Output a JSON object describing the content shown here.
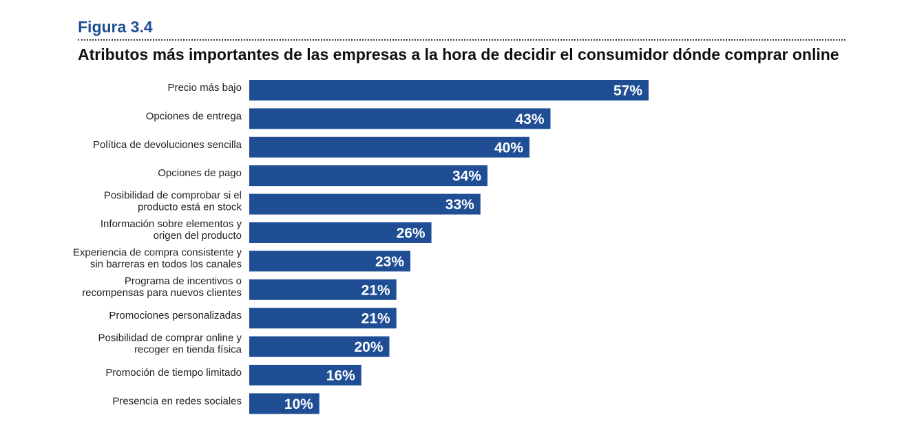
{
  "figure": {
    "label": "Figura 3.4",
    "title": "Atributos más importantes de las empresas a la hora de decidir el consumidor dónde comprar online"
  },
  "colors": {
    "bar": "#1f4e95",
    "figure_label": "#1f4e95",
    "text": "#222222",
    "value_text": "#ffffff"
  },
  "chart_data": {
    "type": "bar",
    "orientation": "horizontal",
    "title": "Atributos más importantes de las empresas a la hora de decidir el consumidor dónde comprar online",
    "xlabel": "",
    "ylabel": "",
    "grid": false,
    "unit": "%",
    "categories": [
      [
        "Precio más bajo"
      ],
      [
        "Opciones de entrega"
      ],
      [
        "Política de devoluciones sencilla"
      ],
      [
        "Opciones de pago"
      ],
      [
        "Posibilidad de comprobar si el",
        "producto está en stock"
      ],
      [
        "Información sobre elementos y",
        "origen del producto"
      ],
      [
        "Experiencia de compra consistente y",
        "sin barreras en todos los canales"
      ],
      [
        "Programa de incentivos o",
        "recompensas para nuevos clientes"
      ],
      [
        "Promociones personalizadas"
      ],
      [
        "Posibilidad de comprar online y",
        "recoger en tienda física"
      ],
      [
        "Promoción de tiempo limitado"
      ],
      [
        "Presencia en redes sociales"
      ]
    ],
    "values": [
      57,
      43,
      40,
      34,
      33,
      26,
      23,
      21,
      21,
      20,
      16,
      10
    ],
    "value_labels": [
      "57%",
      "43%",
      "40%",
      "34%",
      "33%",
      "26%",
      "23%",
      "21%",
      "21%",
      "20%",
      "16%",
      "10%"
    ]
  }
}
